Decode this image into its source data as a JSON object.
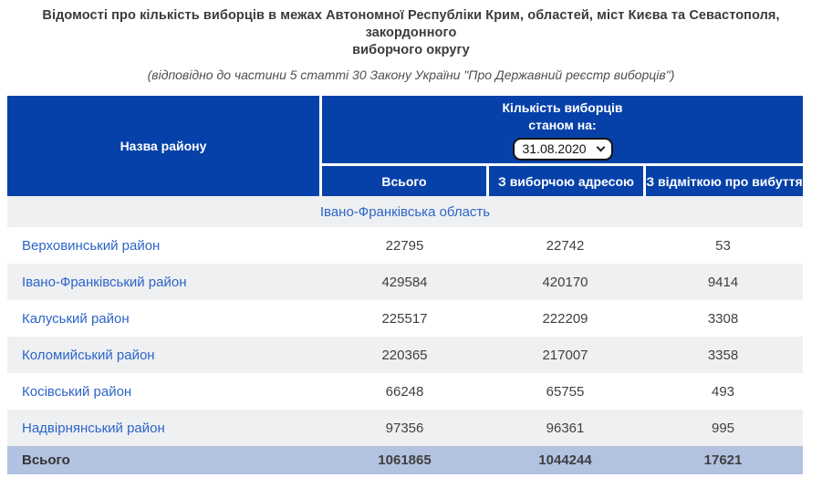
{
  "page": {
    "title_line1": "Відомості про кількість виборців в межах Автономної Республіки Крим, областей, міст Києва та Севастополя, закордонного",
    "title_line2": "виборчого округу",
    "subtitle": "(відповідно до частини 5 статті 30 Закону України \"Про Державний реєстр виборців\")"
  },
  "table": {
    "name_column_header": "Назва району",
    "count_header_line1": "Кількість виборців",
    "count_header_line2": "станом на:",
    "date_select": {
      "selected_value": "31.08.2020"
    },
    "sub_headers": {
      "total": "Всього",
      "with_address": "З виборчою адресою",
      "departed": "З відміткою про вибуття"
    },
    "region_header": "Івано-Франківська область",
    "rows": [
      {
        "name": "Верховинський район",
        "total": "22795",
        "with_address": "22742",
        "departed": "53"
      },
      {
        "name": "Івано-Франківський район",
        "total": "429584",
        "with_address": "420170",
        "departed": "9414"
      },
      {
        "name": "Калуський район",
        "total": "225517",
        "with_address": "222209",
        "departed": "3308"
      },
      {
        "name": "Коломийський район",
        "total": "220365",
        "with_address": "217007",
        "departed": "3358"
      },
      {
        "name": "Косівський район",
        "total": "66248",
        "with_address": "65755",
        "departed": "493"
      },
      {
        "name": "Надвірнянський район",
        "total": "97356",
        "with_address": "96361",
        "departed": "995"
      }
    ],
    "total_row": {
      "label": "Всього",
      "total": "1061865",
      "with_address": "1044244",
      "departed": "17621"
    }
  },
  "colors": {
    "header_background": "#0641a9",
    "header_text": "#ffffff",
    "link_blue": "#2d64c8",
    "alt_row_background": "#eef0f2",
    "total_row_background": "#b3c2e1",
    "body_text": "#3f3f3f"
  }
}
